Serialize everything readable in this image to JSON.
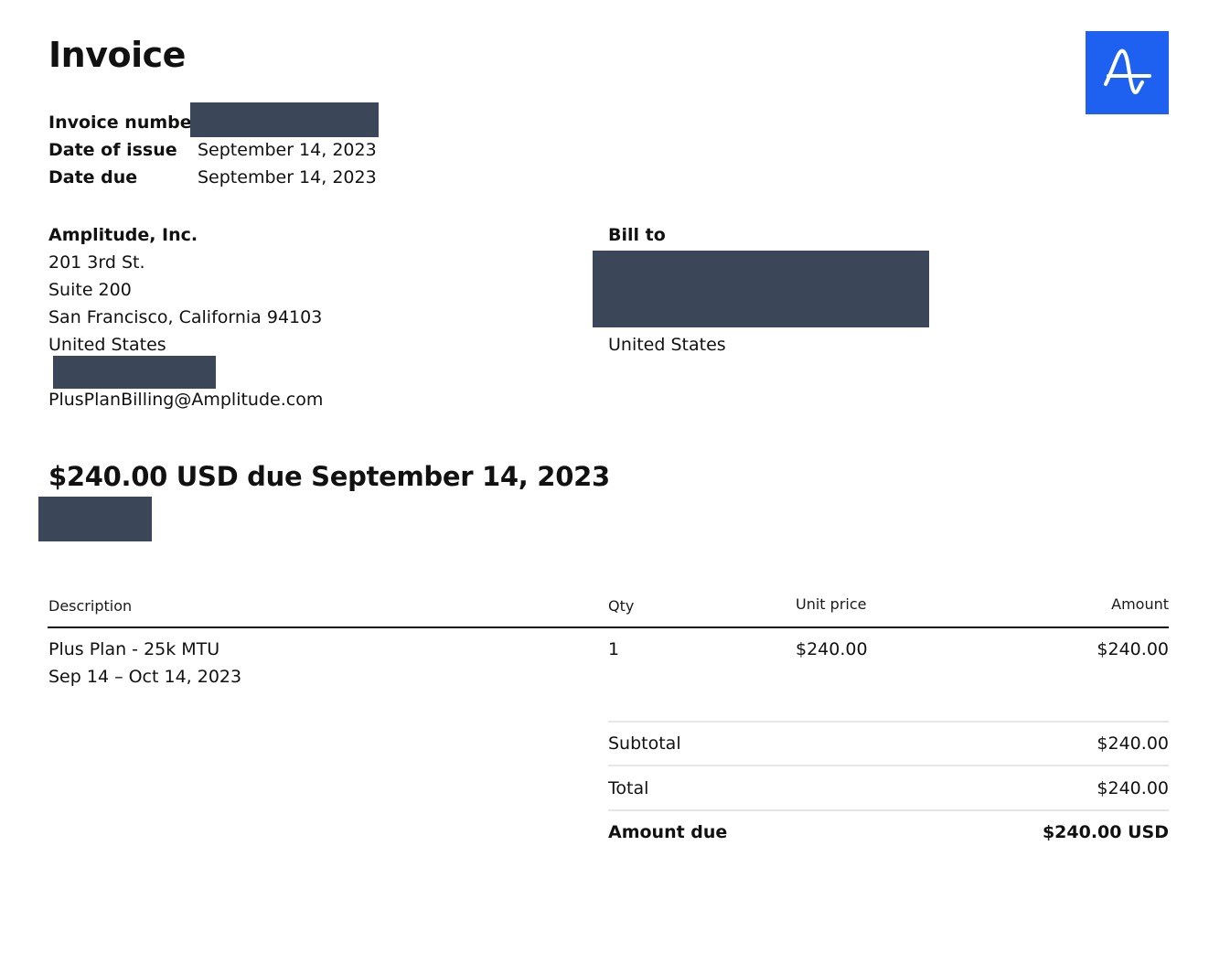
{
  "title": "Invoice",
  "logo": {
    "icon": "amplitude-logo-icon",
    "bg_color": "#1e61f0",
    "fg_color": "#ffffff"
  },
  "meta": {
    "invoice_number_label": "Invoice number",
    "date_of_issue_label": "Date of issue",
    "date_of_issue": "September 14, 2023",
    "date_due_label": "Date due",
    "date_due": "September 14, 2023"
  },
  "seller": {
    "name": "Amplitude, Inc.",
    "line1": "201 3rd St.",
    "line2": "Suite 200",
    "city_line": "San Francisco, California 94103",
    "country": "United States",
    "email": "PlusPlanBilling@Amplitude.com"
  },
  "bill_to": {
    "label": "Bill to",
    "country": "United States"
  },
  "due_heading": "$240.00 USD due September 14, 2023",
  "table": {
    "headers": {
      "description": "Description",
      "qty": "Qty",
      "unit_price": "Unit price",
      "amount": "Amount"
    },
    "rows": [
      {
        "description": "Plus Plan - 25k MTU",
        "period": "Sep 14 – Oct 14, 2023",
        "qty": "1",
        "unit_price": "$240.00",
        "amount": "$240.00"
      }
    ]
  },
  "summary": {
    "subtotal_label": "Subtotal",
    "subtotal": "$240.00",
    "total_label": "Total",
    "total": "$240.00",
    "amount_due_label": "Amount due",
    "amount_due": "$240.00 USD"
  },
  "colors": {
    "redaction": "#3b4759",
    "rule_dark": "#111111",
    "rule_light": "#e6e6e6"
  }
}
